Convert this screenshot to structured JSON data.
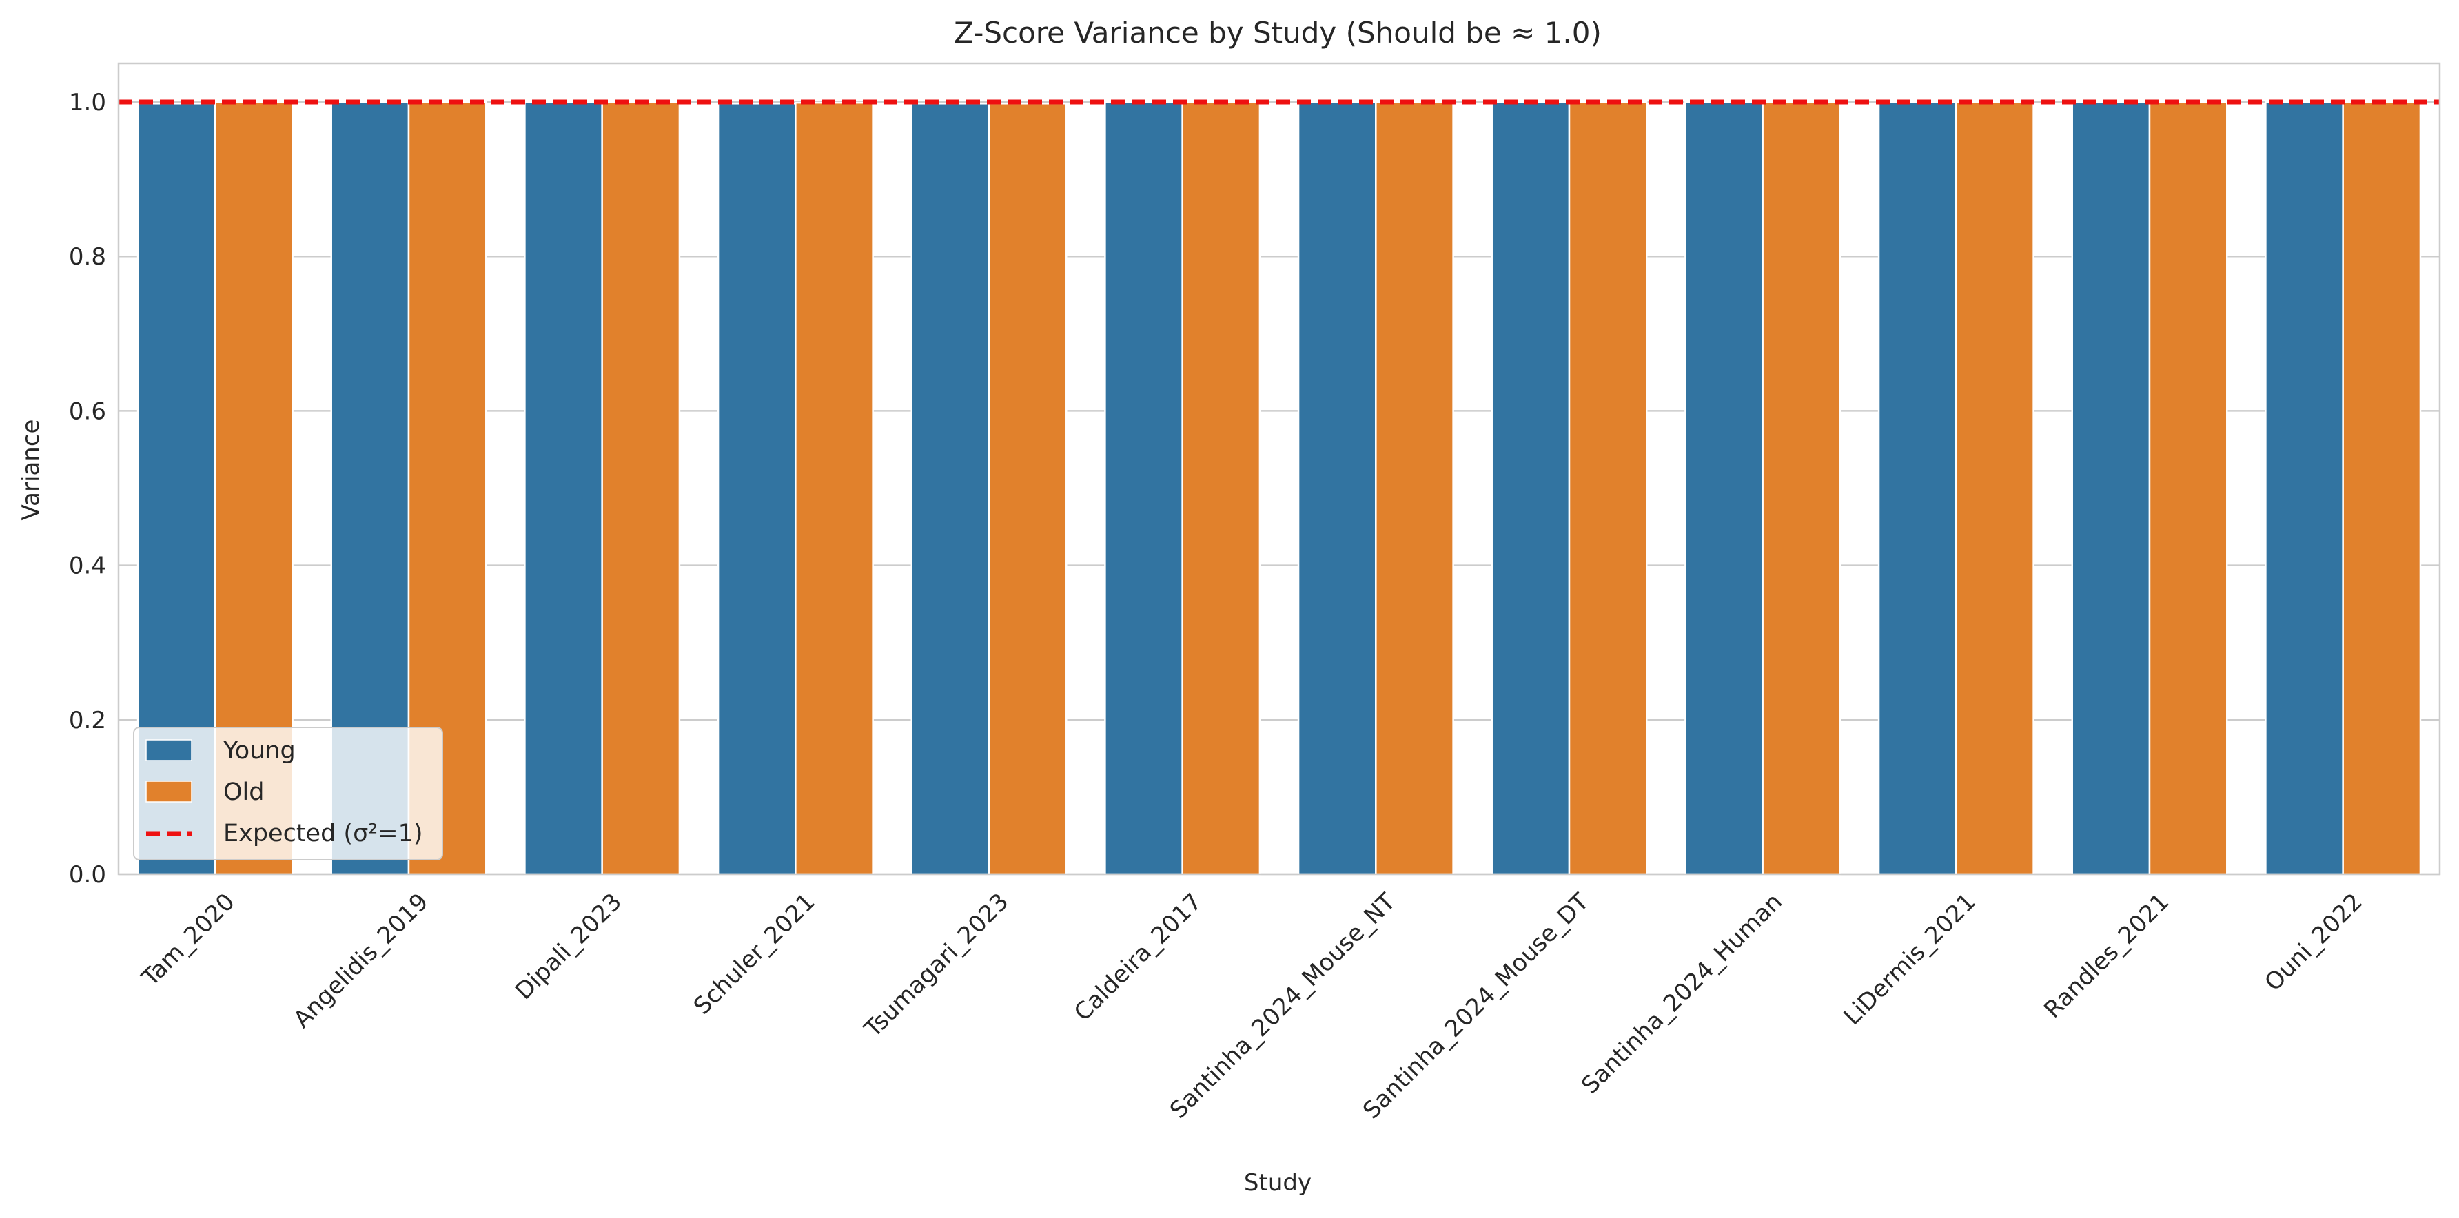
{
  "chart_data": {
    "type": "bar",
    "title": "Z-Score Variance by Study (Should be ≈ 1.0)",
    "xlabel": "Study",
    "ylabel": "Variance",
    "ylim": [
      0,
      1.05
    ],
    "yticks": [
      "0.0",
      "0.2",
      "0.4",
      "0.6",
      "0.8",
      "1.0"
    ],
    "ytick_values": [
      0,
      0.2,
      0.4,
      0.6,
      0.8,
      1.0
    ],
    "grid": true,
    "legend_position": "lower-left",
    "categories": [
      "Tam_2020",
      "Angelidis_2019",
      "Dipali_2023",
      "Schuler_2021",
      "Tsumagari_2023",
      "Caldeira_2017",
      "Santinha_2024_Mouse_NT",
      "Santinha_2024_Mouse_DT",
      "Santinha_2024_Human",
      "LiDermis_2021",
      "Randles_2021",
      "Ouni_2022"
    ],
    "series": [
      {
        "name": "Young",
        "color": "#3274a1",
        "values": [
          0.998,
          1.0,
          1.0,
          0.998,
          0.998,
          1.0,
          1.0,
          1.0,
          1.0,
          1.0,
          1.0,
          1.0
        ]
      },
      {
        "name": "Old",
        "color": "#e1812c",
        "values": [
          1.0,
          1.0,
          1.0,
          0.999,
          0.998,
          1.0,
          1.0,
          1.0,
          1.0,
          1.0,
          1.0,
          1.0
        ]
      }
    ],
    "reference_line": {
      "label": "Expected (σ²=1)",
      "value": 1.0,
      "color": "#ee1111",
      "style": "dashed"
    }
  }
}
